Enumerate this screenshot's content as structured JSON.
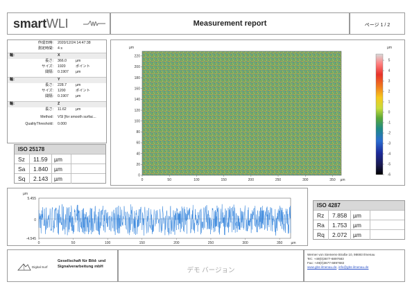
{
  "header": {
    "logo_bold": "smart",
    "logo_light": "WLI",
    "title": "Measurement report",
    "page": "ページ 1 / 2"
  },
  "info": {
    "created_label": "作成日時:",
    "created_value": "2020/12/24 14:47:38",
    "duration_label": "測定時間:",
    "duration_value": "4 s",
    "axis_x": {
      "label": "軸:",
      "name": "X"
    },
    "x_length": {
      "label": "長さ:",
      "value": "366.0",
      "unit": "µm"
    },
    "x_size": {
      "label": "サイズ:",
      "value": "1920",
      "unit": "ポイント"
    },
    "x_spacing": {
      "label": "間隔:",
      "value": "0.1907",
      "unit": "µm"
    },
    "axis_y": {
      "label": "軸:",
      "name": "Y"
    },
    "y_length": {
      "label": "長さ:",
      "value": "228.7",
      "unit": "µm"
    },
    "y_size": {
      "label": "サイズ:",
      "value": "1200",
      "unit": "ポイント"
    },
    "y_spacing": {
      "label": "間隔:",
      "value": "0.1907",
      "unit": "µm"
    },
    "axis_z": {
      "label": "軸:",
      "name": "Z"
    },
    "z_length": {
      "label": "長さ:",
      "value": "11.62",
      "unit": "µm"
    },
    "method": {
      "label": "Method:",
      "value": "VSI [for smooth surfac..."
    },
    "quality": {
      "label": "QualityThreshold:",
      "value": "0.000"
    }
  },
  "iso25178": {
    "title": "ISO 25178",
    "rows": [
      {
        "name": "Sz",
        "value": "11.59",
        "unit": "µm"
      },
      {
        "name": "Sa",
        "value": "1.840",
        "unit": "µm"
      },
      {
        "name": "Sq",
        "value": "2.143",
        "unit": "µm"
      }
    ]
  },
  "iso4287": {
    "title": "ISO 4287",
    "rows": [
      {
        "name": "Rz",
        "value": "7.858",
        "unit": "µm"
      },
      {
        "name": "Ra",
        "value": "1.753",
        "unit": "µm"
      },
      {
        "name": "Rq",
        "value": "2.072",
        "unit": "µm"
      }
    ]
  },
  "colors": {
    "profile_line": "#1f77d8",
    "border": "#9a9a9a",
    "link": "#2950c8",
    "colorbar": [
      "#d9d9d9",
      "#ff7f7f",
      "#e8322a",
      "#f07a1e",
      "#f6c81c",
      "#c8dc3c",
      "#5aa838",
      "#1f8a86",
      "#2a6cd0",
      "#1c2a9a",
      "#1a1a50",
      "#000000"
    ]
  },
  "chart_data": [
    {
      "type": "heatmap",
      "title": "",
      "x_unit": "µm",
      "y_unit": "µm",
      "z_unit": "µm",
      "x_ticks": [
        0,
        50,
        100,
        150,
        200,
        250,
        300,
        350
      ],
      "x_tick_unit_label": "µm",
      "y_ticks": [
        0,
        20,
        40,
        60,
        80,
        100,
        120,
        140,
        160,
        180,
        200,
        220
      ],
      "xlim": [
        0,
        366
      ],
      "ylim": [
        0,
        228.7
      ],
      "colorbar_ticks": [
        5,
        4,
        3,
        2,
        1,
        0,
        -1,
        -2,
        -3,
        -4,
        -5,
        -6
      ],
      "colorbar_unit": "µm",
      "zlim": [
        -6,
        5.6
      ],
      "grid": false,
      "legend": "colorbar-right"
    },
    {
      "type": "line",
      "title": "",
      "y_unit": "µm",
      "x_ticks": [
        0,
        50,
        100,
        150,
        200,
        250,
        300,
        350
      ],
      "x_tick_unit_label": "µm",
      "y_tick_labels": [
        "5.455",
        "0",
        "-4.545"
      ],
      "xlim": [
        0,
        366
      ],
      "ylim": [
        -4.545,
        5.455
      ],
      "grid": false,
      "legend": "none"
    }
  ],
  "footer": {
    "ds_logo": "Digital Surf",
    "company_line1": "Gesellschaft für Bild- und",
    "company_line2": "Signalverarbeitung mbH",
    "demo": "デモ バージョン",
    "address": "Werner von Siemens-Straße 10, 98693 Ilmenau",
    "tel": "Tel.: +49(0)3677-6897683",
    "fax": "Fax: +49(0)3677-6897682",
    "web": "www.gbs-ilmenau.de",
    "email": "info@gbs-ilmenau.de"
  }
}
